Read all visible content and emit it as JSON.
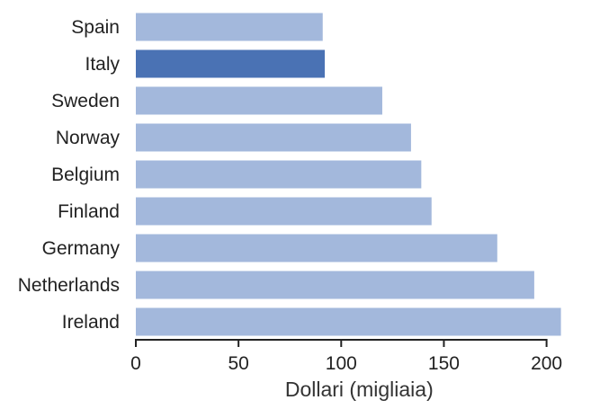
{
  "chart_data": {
    "type": "bar",
    "orientation": "horizontal",
    "title": "",
    "xlabel": "Dollari (migliaia)",
    "ylabel": "",
    "xlim": [
      0,
      210
    ],
    "x_ticks": [
      0,
      50,
      100,
      150,
      200
    ],
    "grid": false,
    "legend": "none",
    "categories": [
      "Spain",
      "Italy",
      "Sweden",
      "Norway",
      "Belgium",
      "Finland",
      "Germany",
      "Netherlands",
      "Ireland"
    ],
    "values": [
      91,
      92,
      120,
      134,
      139,
      144,
      176,
      194,
      207
    ],
    "highlight": "Italy",
    "colors": {
      "bar": "#a3b8dc",
      "highlight_bar": "#4a72b4",
      "axis": "#222222"
    }
  }
}
